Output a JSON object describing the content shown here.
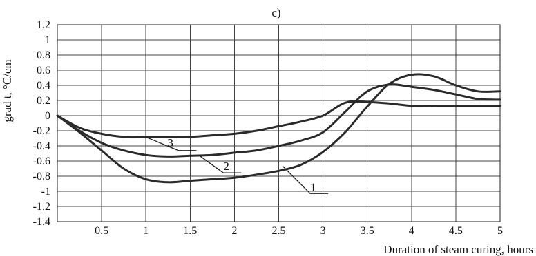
{
  "chart_data": {
    "type": "line",
    "title": "c)",
    "xlabel": "Duration of steam curing, hours",
    "ylabel": "grad t, °C/cm",
    "xlim": [
      0,
      5
    ],
    "ylim": [
      -1.4,
      1.2
    ],
    "x_ticks": [
      {
        "value": 0.5,
        "label": "0.5"
      },
      {
        "value": 1,
        "label": "1"
      },
      {
        "value": 1.5,
        "label": "1.5"
      },
      {
        "value": 2,
        "label": "2"
      },
      {
        "value": 2.5,
        "label": "2.5"
      },
      {
        "value": 3,
        "label": "3"
      },
      {
        "value": 3.5,
        "label": "3.5"
      },
      {
        "value": 4,
        "label": "4"
      },
      {
        "value": 4.5,
        "label": "4.5"
      },
      {
        "value": 5,
        "label": "5"
      }
    ],
    "y_ticks": [
      {
        "value": 1.2,
        "label": "1.2"
      },
      {
        "value": 1,
        "label": "1"
      },
      {
        "value": 0.8,
        "label": "0.8"
      },
      {
        "value": 0.6,
        "label": "0.6"
      },
      {
        "value": 0.4,
        "label": "0.4"
      },
      {
        "value": 0.2,
        "label": "0.2"
      },
      {
        "value": 0,
        "label": "0"
      },
      {
        "value": -0.2,
        "label": "-0.2"
      },
      {
        "value": -0.4,
        "label": "-0.4"
      },
      {
        "value": -0.6,
        "label": "-0.6"
      },
      {
        "value": -0.8,
        "label": "-0.8"
      },
      {
        "value": -1,
        "label": "-1"
      },
      {
        "value": -1.2,
        "label": "-1.2"
      },
      {
        "value": -1.4,
        "label": "-1.4"
      }
    ],
    "grid": true,
    "series": [
      {
        "name": "1",
        "x": [
          0,
          0.25,
          0.5,
          0.75,
          1,
          1.25,
          1.5,
          1.75,
          2,
          2.25,
          2.5,
          2.75,
          3,
          3.25,
          3.5,
          3.75,
          4,
          4.25,
          4.5,
          4.75,
          5
        ],
        "y": [
          0,
          -0.22,
          -0.46,
          -0.7,
          -0.84,
          -0.88,
          -0.86,
          -0.84,
          -0.82,
          -0.78,
          -0.73,
          -0.65,
          -0.48,
          -0.22,
          0.12,
          0.42,
          0.54,
          0.52,
          0.4,
          0.32,
          0.32
        ]
      },
      {
        "name": "2",
        "x": [
          0,
          0.25,
          0.5,
          0.75,
          1,
          1.25,
          1.5,
          1.75,
          2,
          2.25,
          2.5,
          2.75,
          3,
          3.25,
          3.5,
          3.75,
          4,
          4.25,
          4.5,
          4.75,
          5
        ],
        "y": [
          0,
          -0.2,
          -0.36,
          -0.46,
          -0.52,
          -0.54,
          -0.53,
          -0.52,
          -0.49,
          -0.46,
          -0.4,
          -0.33,
          -0.22,
          0.05,
          0.32,
          0.41,
          0.38,
          0.34,
          0.28,
          0.22,
          0.21
        ]
      },
      {
        "name": "3",
        "x": [
          0,
          0.25,
          0.5,
          0.75,
          1,
          1.25,
          1.5,
          1.75,
          2,
          2.25,
          2.5,
          2.75,
          3,
          3.25,
          3.5,
          3.75,
          4,
          4.25,
          4.5,
          4.75,
          5
        ],
        "y": [
          0,
          -0.16,
          -0.24,
          -0.28,
          -0.28,
          -0.28,
          -0.28,
          -0.26,
          -0.24,
          -0.2,
          -0.14,
          -0.08,
          0,
          0.17,
          0.18,
          0.16,
          0.13,
          0.13,
          0.13,
          0.13,
          0.13
        ]
      }
    ]
  }
}
